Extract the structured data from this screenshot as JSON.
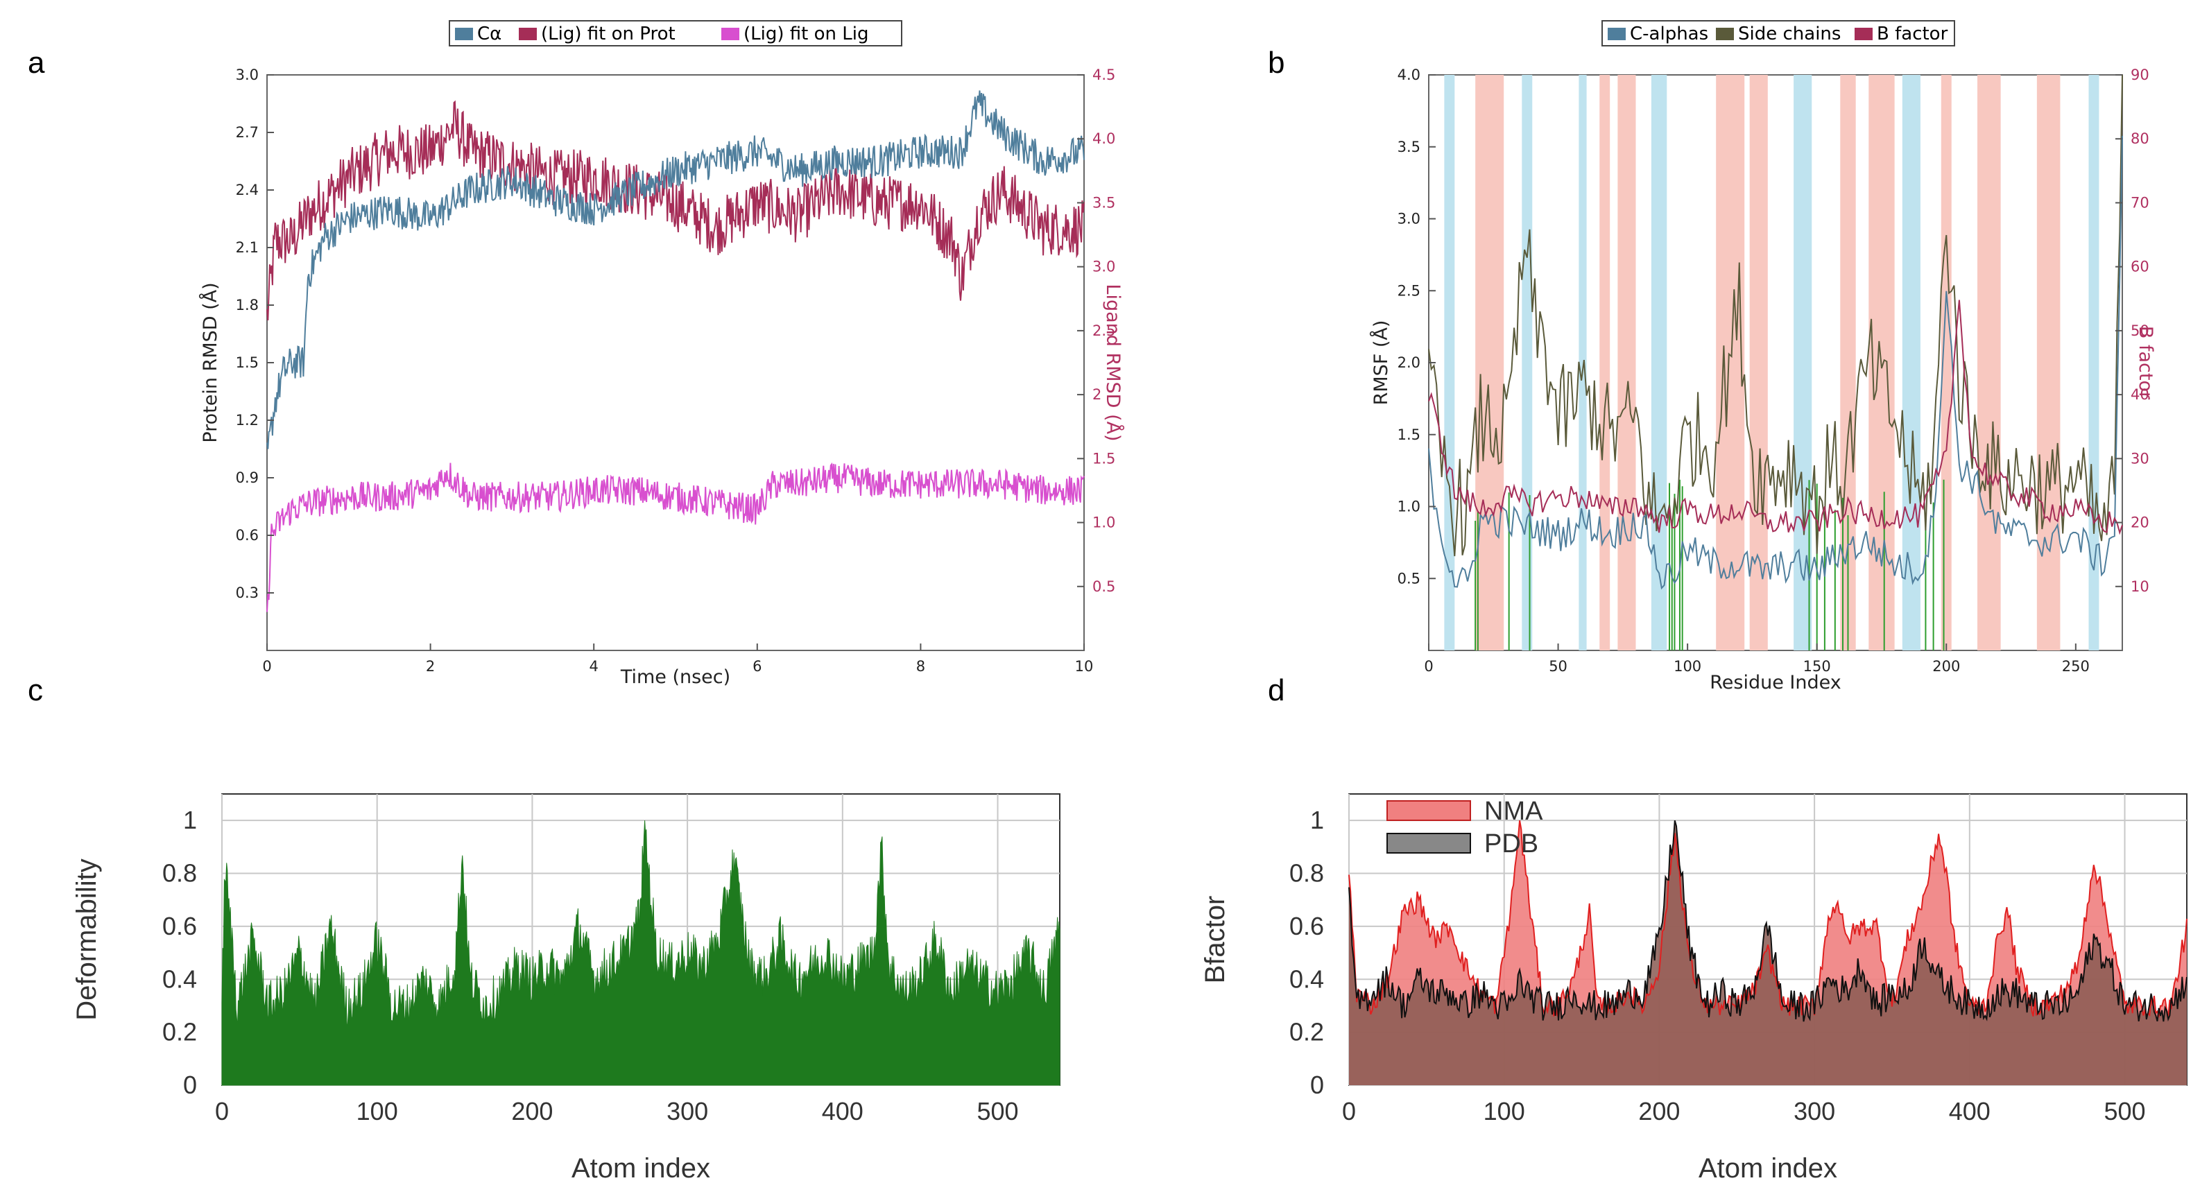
{
  "panels": {
    "a": {
      "letter": "a",
      "legend": [
        "Cα",
        "(Lig) fit on Prot",
        "(Lig) fit on Lig"
      ],
      "xlabel": "Time (nsec)",
      "ylabel_left": "Protein RMSD (Å)",
      "ylabel_right": "Ligand RMSD (Å)",
      "x_ticks": [
        "0",
        "2",
        "4",
        "6",
        "8",
        "10"
      ],
      "y_ticks_left": [
        "0.3",
        "0.6",
        "0.9",
        "1.2",
        "1.5",
        "1.8",
        "2.1",
        "2.4",
        "2.7",
        "3.0"
      ],
      "y_ticks_right": [
        "0.5",
        "1.0",
        "1.5",
        "2",
        "2.5",
        "3.0",
        "3.5",
        "4.0",
        "4.5"
      ]
    },
    "b": {
      "letter": "b",
      "legend": [
        "C-alphas",
        "Side chains",
        "B factor"
      ],
      "xlabel": "Residue Index",
      "ylabel_left": "RMSF (Å)",
      "ylabel_right": "B factor",
      "x_ticks": [
        "0",
        "50",
        "100",
        "150",
        "200",
        "250"
      ],
      "y_ticks_left": [
        "0.5",
        "1.0",
        "1.5",
        "2.0",
        "2.5",
        "3.0",
        "3.5",
        "4.0"
      ],
      "y_ticks_right": [
        "10",
        "20",
        "30",
        "40",
        "50",
        "60",
        "70",
        "80",
        "90"
      ]
    },
    "c": {
      "letter": "c",
      "xlabel": "Atom index",
      "ylabel": "Deformability",
      "x_ticks": [
        "0",
        "100",
        "200",
        "300",
        "400",
        "500"
      ],
      "y_ticks": [
        "0",
        "0.2",
        "0.4",
        "0.6",
        "0.8",
        "1"
      ]
    },
    "d": {
      "letter": "d",
      "xlabel": "Atom index",
      "ylabel": "Bfactor",
      "legend": [
        "NMA",
        "PDB"
      ],
      "x_ticks": [
        "0",
        "100",
        "200",
        "300",
        "400",
        "500"
      ],
      "y_ticks": [
        "0",
        "0.2",
        "0.4",
        "0.6",
        "0.8",
        "1"
      ]
    }
  },
  "colors": {
    "calpha": "#4f7e9c",
    "lig_prot": "#a52d57",
    "lig_lig": "#d84fcf",
    "sidechains": "#5a5a3a",
    "bfactor": "#a52d57",
    "helix_band": "#f8c8c0",
    "strand_band": "#bfe3ef",
    "contact_line": "#2e9e2e",
    "deform_green": "#1e7a1e",
    "nma_red": "#e02020",
    "nma_fill": "#f08080",
    "pdb_black": "#111111",
    "pdb_fill": "#8a5a52",
    "grid": "#c8c8c8",
    "pink_tick": "#b03060"
  },
  "chart_data": [
    {
      "panel": "a",
      "type": "line",
      "xlim": [
        0,
        10
      ],
      "ylim_left": [
        0,
        3.0
      ],
      "ylim_right": [
        0,
        4.5
      ],
      "series": [
        {
          "name": "Cα",
          "axis": "left",
          "x": [
            0,
            0.1,
            0.2,
            0.3,
            0.45,
            0.5,
            0.7,
            1,
            1.5,
            2,
            2.5,
            3,
            3.5,
            4,
            4.5,
            5,
            5.5,
            6,
            6.5,
            7,
            7.5,
            8,
            8.5,
            8.7,
            9,
            9.5,
            10
          ],
          "y": [
            1.0,
            1.3,
            1.45,
            1.5,
            1.5,
            1.95,
            2.15,
            2.25,
            2.3,
            2.25,
            2.4,
            2.45,
            2.35,
            2.3,
            2.4,
            2.5,
            2.55,
            2.6,
            2.5,
            2.55,
            2.55,
            2.6,
            2.6,
            2.85,
            2.7,
            2.55,
            2.6
          ]
        },
        {
          "name": "(Lig) fit on Prot",
          "axis": "right",
          "x": [
            0,
            0.1,
            0.3,
            0.5,
            1,
            1.5,
            2,
            2.3,
            2.5,
            3,
            3.5,
            4,
            4.5,
            5,
            5.5,
            6,
            6.5,
            7,
            7.5,
            8,
            8.4,
            8.5,
            8.7,
            9,
            9.5,
            10
          ],
          "y": [
            2.6,
            3.2,
            3.2,
            3.4,
            3.7,
            3.9,
            3.9,
            4.1,
            3.9,
            3.8,
            3.7,
            3.7,
            3.6,
            3.5,
            3.3,
            3.5,
            3.4,
            3.6,
            3.5,
            3.5,
            3.2,
            2.9,
            3.4,
            3.6,
            3.3,
            3.3
          ]
        },
        {
          "name": "(Lig) fit on Lig",
          "axis": "right",
          "x": [
            0,
            0.05,
            0.15,
            0.3,
            0.5,
            1,
            1.5,
            2,
            2.2,
            2.5,
            3,
            3.5,
            4,
            4.5,
            5,
            5.5,
            6,
            6.2,
            6.5,
            7,
            7.5,
            8,
            8.5,
            9,
            9.5,
            10
          ],
          "y": [
            0.2,
            0.9,
            1.0,
            1.1,
            1.15,
            1.2,
            1.2,
            1.25,
            1.4,
            1.2,
            1.2,
            1.2,
            1.25,
            1.25,
            1.2,
            1.15,
            1.1,
            1.3,
            1.3,
            1.35,
            1.3,
            1.3,
            1.3,
            1.3,
            1.25,
            1.25
          ]
        }
      ]
    },
    {
      "panel": "b",
      "type": "line",
      "xlim": [
        0,
        268
      ],
      "ylim_left": [
        0,
        4.0
      ],
      "ylim_right": [
        0,
        90
      ],
      "series": [
        {
          "name": "C-alphas",
          "axis": "left",
          "x": [
            0,
            5,
            10,
            15,
            20,
            30,
            40,
            50,
            60,
            70,
            80,
            85,
            90,
            95,
            100,
            110,
            120,
            130,
            140,
            150,
            160,
            170,
            180,
            190,
            195,
            200,
            205,
            210,
            220,
            230,
            240,
            250,
            255,
            260,
            265,
            268
          ],
          "y": [
            1.3,
            0.8,
            0.5,
            0.45,
            0.9,
            0.9,
            0.85,
            0.8,
            0.9,
            0.8,
            0.9,
            0.8,
            0.5,
            0.55,
            0.7,
            0.6,
            0.6,
            0.55,
            0.6,
            0.55,
            0.7,
            0.75,
            0.6,
            0.55,
            0.9,
            2.5,
            1.3,
            1.2,
            0.85,
            0.8,
            0.75,
            0.8,
            0.7,
            0.6,
            0.85,
            3.5
          ]
        },
        {
          "name": "Side chains",
          "axis": "left",
          "x": [
            0,
            5,
            10,
            15,
            20,
            30,
            38,
            40,
            45,
            50,
            60,
            70,
            80,
            85,
            90,
            95,
            100,
            110,
            120,
            125,
            130,
            140,
            150,
            155,
            160,
            170,
            180,
            190,
            195,
            200,
            205,
            210,
            220,
            230,
            240,
            250,
            255,
            260,
            265,
            268
          ],
          "y": [
            1.9,
            1.3,
            1.0,
            1.0,
            1.6,
            1.5,
            2.9,
            2.3,
            2.1,
            1.6,
            1.8,
            1.5,
            1.6,
            1.0,
            0.9,
            1.1,
            1.5,
            1.4,
            2.4,
            1.3,
            1.2,
            1.3,
            1.0,
            1.3,
            1.2,
            2.0,
            1.6,
            1.0,
            1.3,
            3.0,
            1.9,
            1.5,
            1.2,
            1.2,
            1.1,
            1.2,
            1.0,
            0.8,
            1.1,
            4.0
          ]
        },
        {
          "name": "B factor",
          "axis": "right",
          "x": [
            0,
            10,
            20,
            30,
            40,
            50,
            60,
            70,
            80,
            90,
            100,
            110,
            120,
            130,
            140,
            150,
            160,
            170,
            180,
            190,
            200,
            205,
            210,
            220,
            230,
            240,
            250,
            260,
            268
          ],
          "y": [
            40,
            25,
            22,
            24,
            23,
            24,
            24,
            22,
            23,
            20,
            22,
            21,
            22,
            20,
            20,
            20,
            22,
            21,
            21,
            21,
            30,
            55,
            30,
            26,
            24,
            22,
            22,
            20,
            20
          ]
        }
      ]
    },
    {
      "panel": "c",
      "type": "area",
      "xlim": [
        0,
        540
      ],
      "ylim": [
        0,
        1.1
      ],
      "series": [
        {
          "name": "Deformability",
          "x": [
            0,
            2,
            10,
            20,
            30,
            40,
            50,
            60,
            70,
            80,
            90,
            100,
            110,
            120,
            130,
            140,
            150,
            155,
            160,
            170,
            180,
            190,
            200,
            210,
            220,
            230,
            240,
            250,
            260,
            270,
            272,
            280,
            290,
            300,
            310,
            320,
            330,
            340,
            350,
            360,
            370,
            380,
            390,
            400,
            410,
            420,
            425,
            430,
            440,
            450,
            460,
            470,
            480,
            490,
            500,
            510,
            520,
            530,
            540
          ],
          "y": [
            0.3,
            0.84,
            0.3,
            0.55,
            0.3,
            0.35,
            0.5,
            0.3,
            0.6,
            0.3,
            0.35,
            0.55,
            0.3,
            0.3,
            0.4,
            0.3,
            0.45,
            0.86,
            0.4,
            0.3,
            0.35,
            0.45,
            0.4,
            0.45,
            0.4,
            0.6,
            0.4,
            0.45,
            0.5,
            0.65,
            1.0,
            0.5,
            0.45,
            0.5,
            0.45,
            0.55,
            0.85,
            0.45,
            0.4,
            0.55,
            0.4,
            0.45,
            0.5,
            0.4,
            0.45,
            0.5,
            0.9,
            0.45,
            0.35,
            0.4,
            0.55,
            0.35,
            0.45,
            0.4,
            0.35,
            0.4,
            0.5,
            0.35,
            0.6
          ]
        }
      ]
    },
    {
      "panel": "d",
      "type": "area",
      "xlim": [
        0,
        540
      ],
      "ylim": [
        0,
        1.1
      ],
      "series": [
        {
          "name": "NMA",
          "x": [
            0,
            5,
            15,
            25,
            35,
            45,
            55,
            65,
            75,
            85,
            95,
            105,
            110,
            115,
            125,
            135,
            145,
            155,
            160,
            170,
            180,
            190,
            200,
            210,
            220,
            230,
            240,
            250,
            260,
            270,
            280,
            290,
            300,
            310,
            315,
            320,
            330,
            340,
            350,
            360,
            370,
            380,
            385,
            390,
            400,
            410,
            420,
            425,
            430,
            440,
            450,
            460,
            470,
            480,
            490,
            500,
            510,
            520,
            530,
            540
          ],
          "y": [
            0.8,
            0.35,
            0.3,
            0.4,
            0.65,
            0.7,
            0.55,
            0.6,
            0.45,
            0.35,
            0.3,
            0.7,
            1.0,
            0.75,
            0.3,
            0.3,
            0.4,
            0.65,
            0.3,
            0.3,
            0.35,
            0.3,
            0.45,
            0.95,
            0.45,
            0.3,
            0.3,
            0.3,
            0.35,
            0.5,
            0.3,
            0.3,
            0.3,
            0.65,
            0.7,
            0.55,
            0.6,
            0.6,
            0.3,
            0.55,
            0.7,
            0.95,
            0.8,
            0.55,
            0.3,
            0.3,
            0.6,
            0.65,
            0.45,
            0.3,
            0.3,
            0.35,
            0.45,
            0.85,
            0.6,
            0.3,
            0.3,
            0.3,
            0.3,
            0.6
          ]
        },
        {
          "name": "PDB",
          "x": [
            0,
            5,
            15,
            25,
            35,
            45,
            55,
            65,
            75,
            85,
            95,
            105,
            110,
            115,
            125,
            135,
            145,
            155,
            160,
            170,
            180,
            190,
            200,
            210,
            220,
            230,
            240,
            250,
            260,
            270,
            280,
            290,
            300,
            310,
            320,
            330,
            340,
            350,
            360,
            370,
            380,
            390,
            400,
            410,
            420,
            430,
            440,
            450,
            460,
            470,
            480,
            490,
            500,
            510,
            520,
            530,
            540
          ],
          "y": [
            0.7,
            0.3,
            0.35,
            0.4,
            0.3,
            0.4,
            0.35,
            0.35,
            0.3,
            0.35,
            0.3,
            0.3,
            0.4,
            0.35,
            0.3,
            0.3,
            0.35,
            0.3,
            0.3,
            0.3,
            0.35,
            0.35,
            0.55,
            1.0,
            0.5,
            0.3,
            0.35,
            0.3,
            0.35,
            0.6,
            0.3,
            0.3,
            0.3,
            0.4,
            0.35,
            0.45,
            0.3,
            0.35,
            0.35,
            0.55,
            0.4,
            0.35,
            0.3,
            0.3,
            0.35,
            0.35,
            0.3,
            0.3,
            0.3,
            0.35,
            0.55,
            0.45,
            0.3,
            0.3,
            0.3,
            0.3,
            0.4
          ]
        }
      ]
    }
  ]
}
